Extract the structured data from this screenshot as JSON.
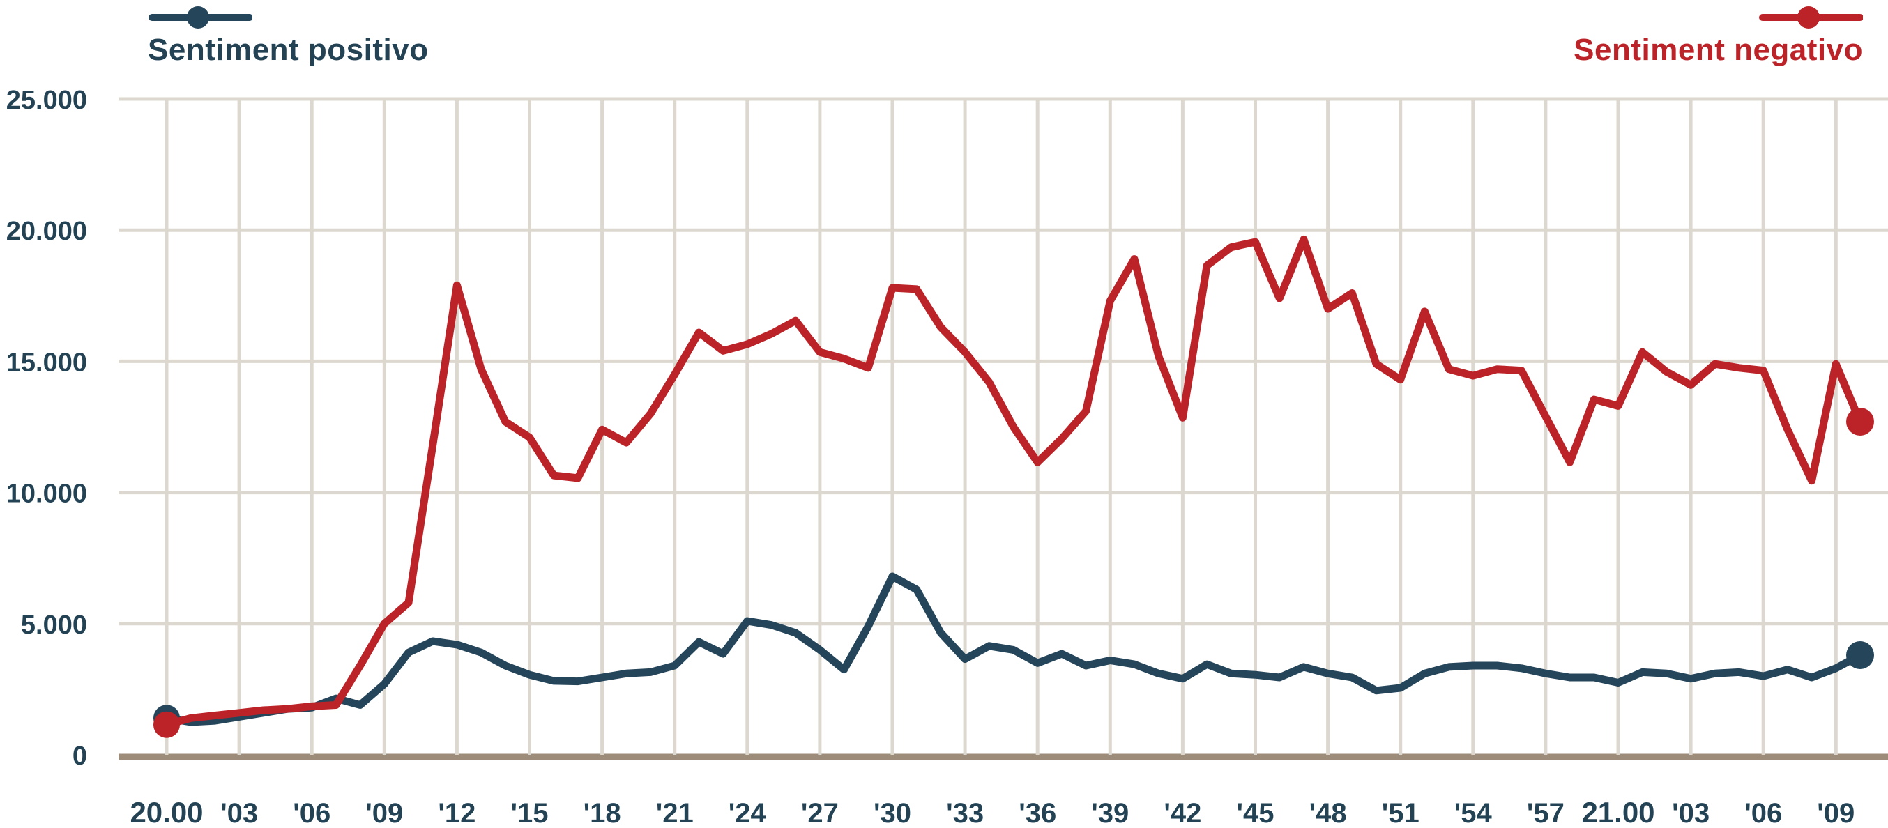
{
  "colors": {
    "background": "#ffffff",
    "grid": "#ddd8cf",
    "baseline": "#9c8c79",
    "text": "#234355",
    "positive": "#25455a",
    "negative": "#bc2328"
  },
  "chart_data": {
    "type": "line",
    "title": "",
    "xlabel": "",
    "ylabel": "",
    "legend_position": "top",
    "grid": {
      "horizontal": true,
      "vertical": true
    },
    "x_axis": {
      "description": "time from 20.00 to ~21.10, one data point per minute, tick every 3 minutes",
      "tick_every_points": 3,
      "tick_labels": [
        "20.00",
        "'03",
        "'06",
        "'09",
        "'12",
        "'15",
        "'18",
        "'21",
        "'24",
        "'27",
        "'30",
        "'33",
        "'36",
        "'39",
        "'42",
        "'45",
        "'48",
        "'51",
        "'54",
        "'57",
        "21.00",
        "'03",
        "'06",
        "'09"
      ],
      "bold_tick_labels": [
        "20.00",
        "21.00"
      ]
    },
    "y_axis": {
      "ylim": [
        0,
        25000
      ],
      "ticks": [
        {
          "value": 0,
          "label": "0"
        },
        {
          "value": 5000,
          "label": "5.000"
        },
        {
          "value": 10000,
          "label": "10.000"
        },
        {
          "value": 15000,
          "label": "15.000"
        },
        {
          "value": 20000,
          "label": "20.000"
        },
        {
          "value": 25000,
          "label": "25.000"
        }
      ]
    },
    "markers": {
      "start_dot": true,
      "end_dot": true
    },
    "series": [
      {
        "name": "Sentiment positivo",
        "color": "#25455a",
        "values": [
          1400,
          1250,
          1300,
          1450,
          1600,
          1750,
          1800,
          2150,
          1900,
          2700,
          3900,
          4330,
          4200,
          3900,
          3400,
          3050,
          2820,
          2800,
          2950,
          3100,
          3150,
          3400,
          4300,
          3850,
          5100,
          4950,
          4650,
          4000,
          3250,
          4900,
          6800,
          6300,
          4650,
          3650,
          4150,
          4000,
          3500,
          3850,
          3400,
          3600,
          3450,
          3100,
          2900,
          3450,
          3100,
          3050,
          2950,
          3350,
          3100,
          2950,
          2450,
          2550,
          3100,
          3350,
          3400,
          3400,
          3300,
          3100,
          2950,
          2950,
          2750,
          3150,
          3100,
          2900,
          3100,
          3150,
          3000,
          3250,
          2950,
          3300,
          3800
        ]
      },
      {
        "name": "Sentiment negativo",
        "color": "#bc2328",
        "values": [
          1150,
          1400,
          1500,
          1600,
          1700,
          1750,
          1850,
          1900,
          3400,
          5000,
          5800,
          11800,
          17900,
          14700,
          12700,
          12100,
          10650,
          10550,
          12400,
          11900,
          13000,
          14500,
          16100,
          15400,
          15650,
          16050,
          16550,
          15350,
          15100,
          14750,
          17800,
          17750,
          16300,
          15350,
          14200,
          12500,
          11150,
          12050,
          13100,
          17300,
          18900,
          15200,
          12850,
          18650,
          19350,
          19550,
          17400,
          19650,
          17000,
          17600,
          14900,
          14300,
          16900,
          14700,
          14450,
          14700,
          14650,
          12900,
          11150,
          13550,
          13300,
          15350,
          14600,
          14100,
          14900,
          14750,
          14650,
          12400,
          10450,
          14900,
          12700
        ]
      }
    ]
  }
}
